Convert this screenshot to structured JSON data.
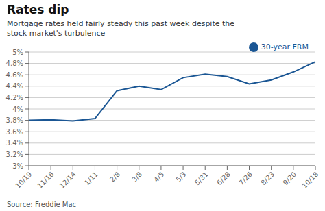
{
  "chart_data": {
    "type": "line",
    "title": "Rates dip",
    "subtitle": "Mortgage rates held fairly steady this past week despite the\nstock market's turbulence",
    "source": "Source: Freddie Mac",
    "categories": [
      "10/19",
      "11/16",
      "12/14",
      "1/11",
      "2/8",
      "3/8",
      "4/5",
      "5/3",
      "5/31",
      "6/28",
      "7/26",
      "8/23",
      "9/20",
      "10/18"
    ],
    "series": [
      {
        "name": "30-year FRM",
        "color": "#1a5694",
        "values": [
          3.8,
          3.81,
          3.79,
          3.83,
          4.32,
          4.4,
          4.34,
          4.55,
          4.61,
          4.57,
          4.44,
          4.51,
          4.65,
          4.83
        ]
      }
    ],
    "ylim": [
      3.0,
      5.0
    ],
    "yticks": [
      {
        "value": 3.0,
        "label": "3%"
      },
      {
        "value": 3.2,
        "label": "3.2%"
      },
      {
        "value": 3.4,
        "label": "3.4%"
      },
      {
        "value": 3.6,
        "label": "3.6%"
      },
      {
        "value": 3.8,
        "label": "3.8%"
      },
      {
        "value": 4.0,
        "label": "4%"
      },
      {
        "value": 4.2,
        "label": "4.2%"
      },
      {
        "value": 4.4,
        "label": "4.4%"
      },
      {
        "value": 4.6,
        "label": "4.6%"
      },
      {
        "value": 4.8,
        "label": "4.8%"
      },
      {
        "value": 5.0,
        "label": "5%"
      }
    ],
    "grid": true,
    "legend": "upper right"
  }
}
